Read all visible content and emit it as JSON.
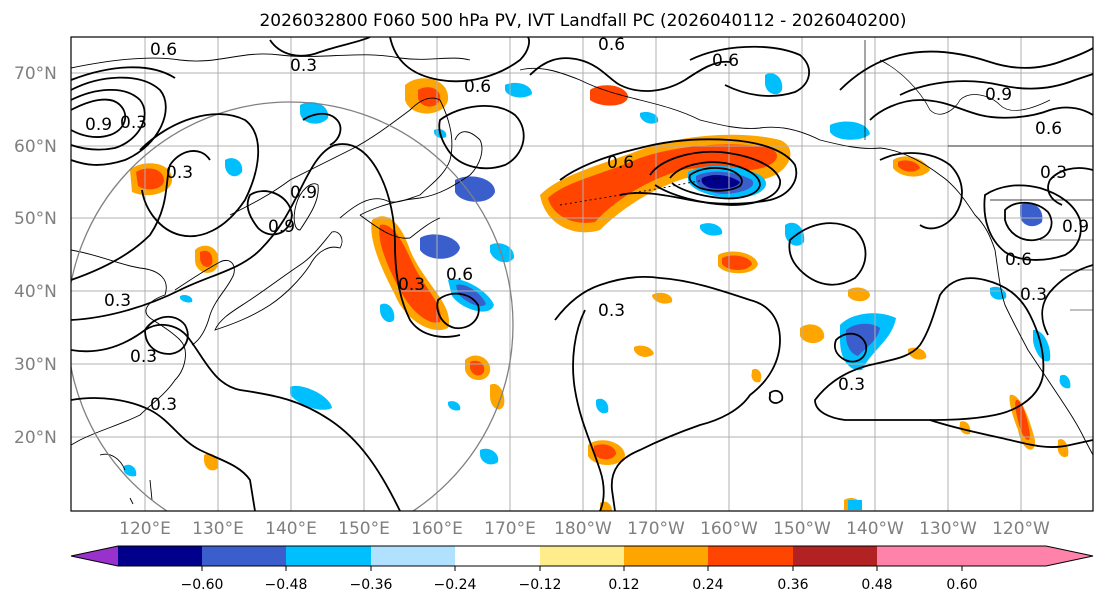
{
  "title": "2026032800 F060 500 hPa PV, IVT Landfall PC (2026040112 - 2026040200)",
  "lat_labels": [
    "70°N",
    "60°N",
    "50°N",
    "40°N",
    "30°N",
    "20°N"
  ],
  "lon_labels": [
    "120°E",
    "130°E",
    "140°E",
    "150°E",
    "160°E",
    "170°E",
    "180°W",
    "170°W",
    "160°W",
    "150°W",
    "140°W",
    "130°W",
    "120°W"
  ],
  "contour_labels": [
    "0.6",
    "0.3",
    "0.6",
    "0.6",
    "0.9",
    "0.6",
    "0.6",
    "0.9",
    "0.3",
    "0.3",
    "0.6",
    "0.3",
    "0.3",
    "0.3",
    "0.3",
    "0.9",
    "0.6",
    "0.3",
    "0.3",
    "0.3",
    "0.6",
    "0.9",
    "0.9",
    "0.3"
  ],
  "colorbar": {
    "ticks": [
      "−0.60",
      "−0.48",
      "−0.36",
      "−0.24",
      "−0.12",
      "0.12",
      "0.24",
      "0.36",
      "0.48",
      "0.60"
    ],
    "colors": [
      "#9932cc",
      "#00008b",
      "#3a5fcd",
      "#00bfff",
      "#b0e2ff",
      "#ffffff",
      "#ffec8b",
      "#ffa500",
      "#ff4500",
      "#b22222",
      "#ff82ab"
    ]
  },
  "palette": {
    "orange": "#ffa500",
    "red": "#ff4500",
    "yellow": "#ffec8b",
    "lightblue": "#b0e2ff",
    "skyblue": "#00bfff",
    "blue": "#3a5fcd",
    "navy": "#00008b"
  }
}
